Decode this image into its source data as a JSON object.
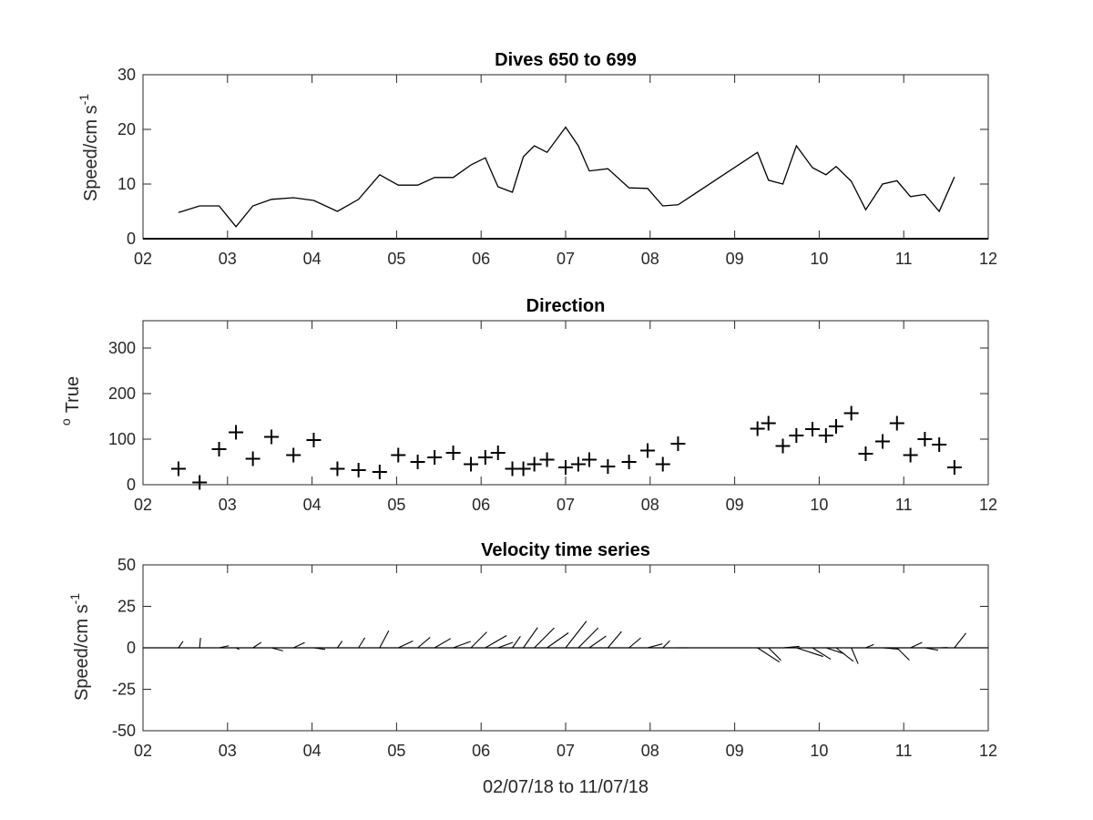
{
  "chart_data": [
    {
      "type": "line",
      "title": "Dives 650 to 699",
      "ylabel_main": "Speed/cm s",
      "ylabel_sup": "-1",
      "xlabel": "",
      "xlim": [
        2,
        12
      ],
      "ylim": [
        0,
        30
      ],
      "xticks": [
        2,
        3,
        4,
        5,
        6,
        7,
        8,
        9,
        10,
        11,
        12
      ],
      "xtick_labels": [
        "02",
        "03",
        "04",
        "05",
        "06",
        "07",
        "08",
        "09",
        "10",
        "11",
        "12"
      ],
      "yticks": [
        0,
        10,
        20,
        30
      ],
      "ytick_labels": [
        "0",
        "10",
        "20",
        "30"
      ],
      "grid": false,
      "x": [
        2.42,
        2.67,
        2.9,
        3.1,
        3.3,
        3.52,
        3.78,
        4.02,
        4.3,
        4.55,
        4.8,
        5.02,
        5.25,
        5.45,
        5.67,
        5.88,
        6.05,
        6.2,
        6.37,
        6.5,
        6.63,
        6.78,
        7.0,
        7.15,
        7.28,
        7.5,
        7.75,
        7.97,
        8.15,
        8.33,
        9.27,
        9.4,
        9.57,
        9.73,
        9.92,
        10.08,
        10.2,
        10.38,
        10.55,
        10.75,
        10.92,
        11.08,
        11.25,
        11.42,
        11.6
      ],
      "values": [
        4.8,
        6.0,
        6.0,
        2.2,
        6.0,
        7.2,
        7.5,
        7.0,
        5.0,
        7.2,
        11.7,
        9.8,
        9.8,
        11.2,
        11.2,
        13.5,
        14.8,
        9.5,
        8.5,
        15.0,
        17.0,
        15.8,
        20.4,
        17.0,
        12.4,
        12.8,
        9.3,
        9.2,
        6.0,
        6.2,
        15.8,
        10.7,
        10.0,
        17.0,
        13.0,
        11.7,
        13.2,
        10.5,
        5.3,
        10.0,
        10.6,
        7.7,
        8.1,
        5.0,
        11.3
      ]
    },
    {
      "type": "scatter",
      "title": "Direction",
      "ylabel_main": "True",
      "ylabel_sup": "o",
      "xlabel": "",
      "marker": "+",
      "xlim": [
        2,
        12
      ],
      "ylim": [
        0,
        360
      ],
      "xticks": [
        2,
        3,
        4,
        5,
        6,
        7,
        8,
        9,
        10,
        11,
        12
      ],
      "xtick_labels": [
        "02",
        "03",
        "04",
        "05",
        "06",
        "07",
        "08",
        "09",
        "10",
        "11",
        "12"
      ],
      "yticks": [
        0,
        100,
        200,
        300
      ],
      "ytick_labels": [
        "0",
        "100",
        "200",
        "300"
      ],
      "grid": false,
      "x": [
        2.42,
        2.67,
        2.9,
        3.1,
        3.3,
        3.52,
        3.78,
        4.02,
        4.3,
        4.55,
        4.8,
        5.02,
        5.25,
        5.45,
        5.67,
        5.88,
        6.05,
        6.2,
        6.37,
        6.5,
        6.63,
        6.78,
        7.0,
        7.15,
        7.28,
        7.5,
        7.75,
        7.97,
        8.15,
        8.33,
        9.27,
        9.4,
        9.57,
        9.73,
        9.92,
        10.08,
        10.2,
        10.38,
        10.55,
        10.75,
        10.92,
        11.08,
        11.25,
        11.42,
        11.6
      ],
      "values": [
        35,
        5,
        78,
        115,
        57,
        105,
        65,
        98,
        35,
        32,
        28,
        65,
        50,
        60,
        70,
        45,
        60,
        70,
        35,
        35,
        45,
        55,
        38,
        45,
        55,
        40,
        50,
        75,
        45,
        90,
        123,
        135,
        85,
        108,
        122,
        108,
        128,
        157,
        68,
        95,
        135,
        65,
        100,
        88,
        38
      ]
    },
    {
      "type": "quiver",
      "title": "Velocity time series",
      "ylabel_main": "Speed/cm s",
      "ylabel_sup": "-1",
      "xlabel": "02/07/18 to 11/07/18",
      "xlim": [
        2,
        12
      ],
      "ylim": [
        -50,
        50
      ],
      "xticks": [
        2,
        3,
        4,
        5,
        6,
        7,
        8,
        9,
        10,
        11,
        12
      ],
      "xtick_labels": [
        "02",
        "03",
        "04",
        "05",
        "06",
        "07",
        "08",
        "09",
        "10",
        "11",
        "12"
      ],
      "yticks": [
        50,
        25,
        0,
        -25,
        -50
      ],
      "ytick_labels": [
        "50",
        "25",
        "0",
        "-25",
        "-50"
      ],
      "grid": false,
      "baseline": 0,
      "x": [
        2.42,
        2.67,
        2.9,
        3.1,
        3.3,
        3.52,
        3.78,
        4.02,
        4.3,
        4.55,
        4.8,
        5.02,
        5.25,
        5.45,
        5.67,
        5.88,
        6.05,
        6.2,
        6.37,
        6.5,
        6.63,
        6.78,
        7.0,
        7.15,
        7.28,
        7.5,
        7.75,
        7.97,
        8.15,
        8.33,
        9.27,
        9.4,
        9.57,
        9.73,
        9.92,
        10.08,
        10.2,
        10.38,
        10.55,
        10.75,
        10.92,
        11.08,
        11.25,
        11.42,
        11.6
      ],
      "speed": [
        4.8,
        6.0,
        6.0,
        2.2,
        6.0,
        7.2,
        7.5,
        7.0,
        5.0,
        7.2,
        11.7,
        9.8,
        9.8,
        11.2,
        11.2,
        13.5,
        14.8,
        9.5,
        8.5,
        15.0,
        17.0,
        15.8,
        20.4,
        17.0,
        12.4,
        12.8,
        9.3,
        9.2,
        6.0,
        6.2,
        15.8,
        10.7,
        10.0,
        17.0,
        13.0,
        11.7,
        13.2,
        10.5,
        5.3,
        10.0,
        10.6,
        7.7,
        8.1,
        5.0,
        11.3
      ],
      "direction_deg_true": [
        35,
        5,
        78,
        115,
        57,
        105,
        65,
        98,
        35,
        32,
        28,
        65,
        50,
        60,
        70,
        45,
        60,
        70,
        35,
        35,
        45,
        55,
        38,
        45,
        55,
        40,
        50,
        75,
        45,
        90,
        123,
        135,
        85,
        108,
        122,
        108,
        128,
        157,
        68,
        95,
        135,
        65,
        100,
        88,
        38
      ]
    }
  ]
}
